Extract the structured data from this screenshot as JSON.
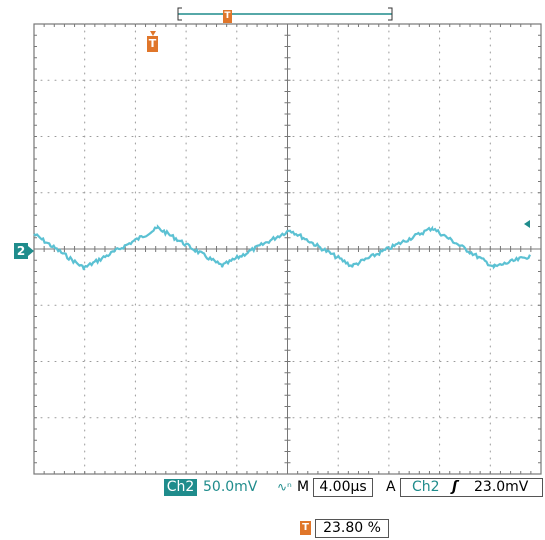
{
  "header": {
    "trigger_position_marker": "T"
  },
  "graticule": {
    "h_divisions": 10,
    "v_divisions": 8,
    "grid_color": "#9a9a9a"
  },
  "trace": {
    "color": "#5bc1d3",
    "channel_marker": "2",
    "trigger_marker": "T"
  },
  "status_bar": {
    "channel": "Ch2",
    "volts_per_div": "50.0mV",
    "bandwidth_icon": "bw-limit-icon",
    "mode": "M",
    "time_per_div": "4.00µs",
    "acquire": "A",
    "trigger_source": "Ch2",
    "trigger_slope": "ʃ",
    "trigger_level": "23.0mV"
  },
  "footer": {
    "position_marker": "T",
    "position_percent": "23.80 %"
  }
}
